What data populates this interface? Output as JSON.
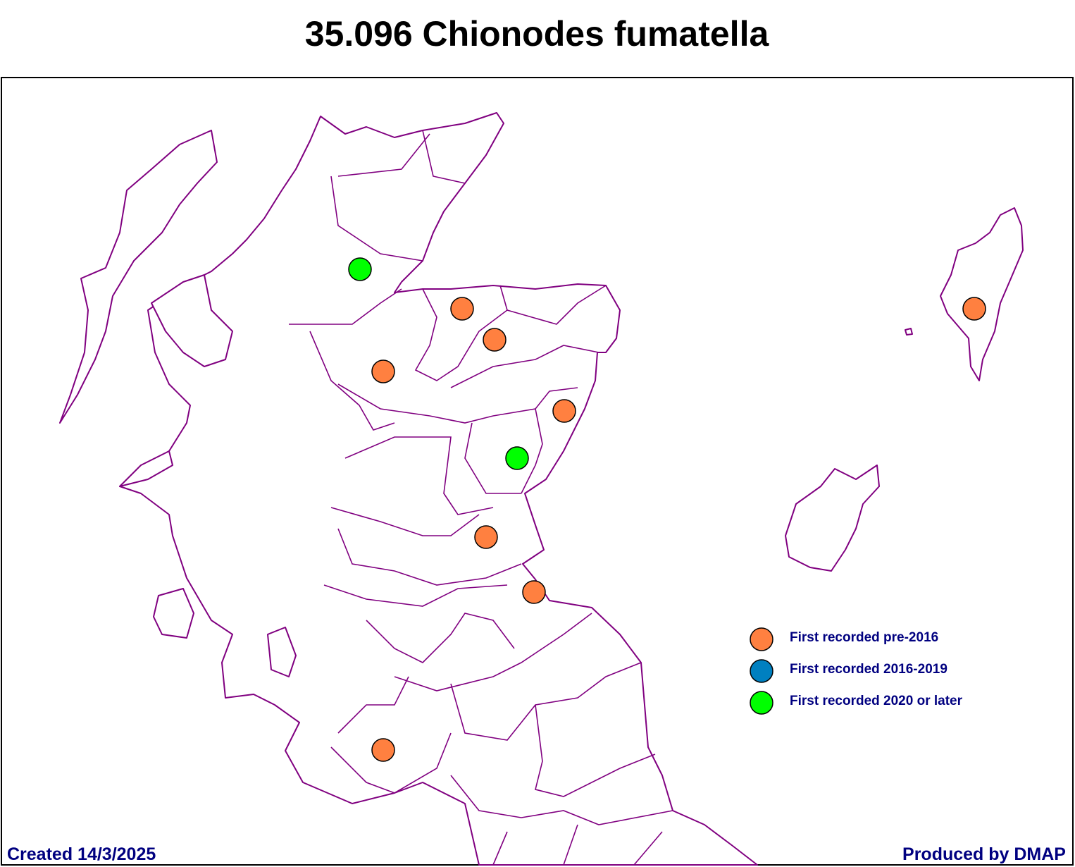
{
  "title": "35.096 Chionodes fumatella",
  "legend": [
    {
      "label": "First recorded pre-2016",
      "color": "#ff8040"
    },
    {
      "label": "First recorded 2016-2019",
      "color": "#0080c0"
    },
    {
      "label": "First recorded 2020 or later",
      "color": "#00ff00"
    }
  ],
  "footer": {
    "created": "Created 14/3/2025",
    "produced": "Produced by DMAP"
  }
}
